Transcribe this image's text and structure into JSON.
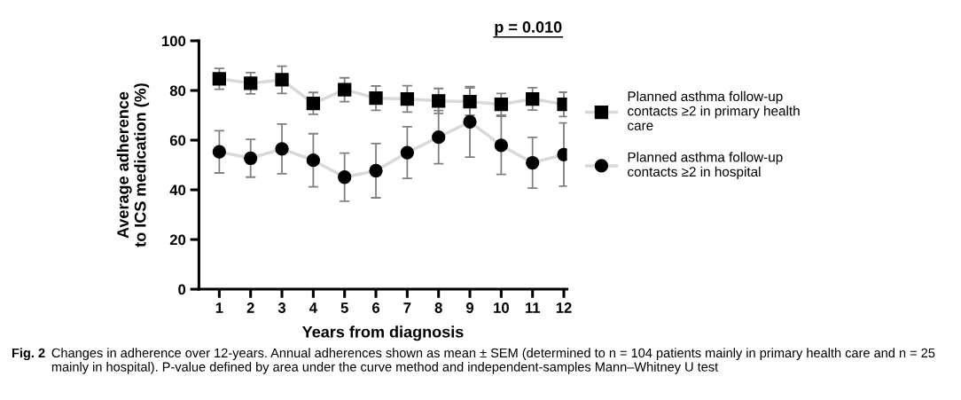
{
  "chart_data": {
    "type": "line",
    "title": "p = 0.010",
    "xlabel": "Years from diagnosis",
    "ylabel": "Average adherence\nto ICS medication (%)",
    "x": [
      1,
      2,
      3,
      4,
      5,
      6,
      7,
      8,
      9,
      10,
      11,
      12
    ],
    "series": [
      {
        "name": "Planned asthma follow-up\ncontacts ≥2 in primary health\ncare",
        "color": "#000000",
        "marker": "square",
        "values": [
          84.7,
          82.9,
          84.3,
          74.8,
          80.3,
          76.9,
          76.6,
          75.8,
          75.5,
          74.4,
          76.6,
          74.4
        ],
        "errors": [
          4.2,
          4.3,
          5.5,
          4.4,
          4.8,
          4.9,
          5.3,
          5.0,
          5.5,
          4.4,
          4.5,
          4.9
        ]
      },
      {
        "name": "Planned asthma follow-up\ncontacts ≥2 in hospital",
        "color": "#000000",
        "marker": "circle",
        "values": [
          55.3,
          52.7,
          56.5,
          51.9,
          45.1,
          47.7,
          55.0,
          61.2,
          67.4,
          57.9,
          50.9,
          54.2
        ],
        "errors": [
          8.5,
          7.6,
          10.0,
          10.7,
          9.7,
          10.9,
          10.4,
          10.7,
          14.2,
          11.7,
          10.2,
          12.7
        ]
      }
    ],
    "xlim": [
      0.35,
      12.1
    ],
    "xticks": [
      1,
      2,
      3,
      4,
      5,
      6,
      7,
      8,
      9,
      10,
      11,
      12
    ],
    "ylim": [
      0,
      100
    ],
    "yticks": [
      0,
      20,
      40,
      60,
      80,
      100
    ],
    "grid": false,
    "legend": "right",
    "annotations": [
      "Fig. 2",
      "Changes in adherence over 12-years. Annual adherences shown as mean ± SEM (determined to n = 104 patients mainly in primary health care and n = 25 mainly in hospital). P-value defined by area under the curve method and independent-samples Mann–Whitney U test"
    ]
  }
}
